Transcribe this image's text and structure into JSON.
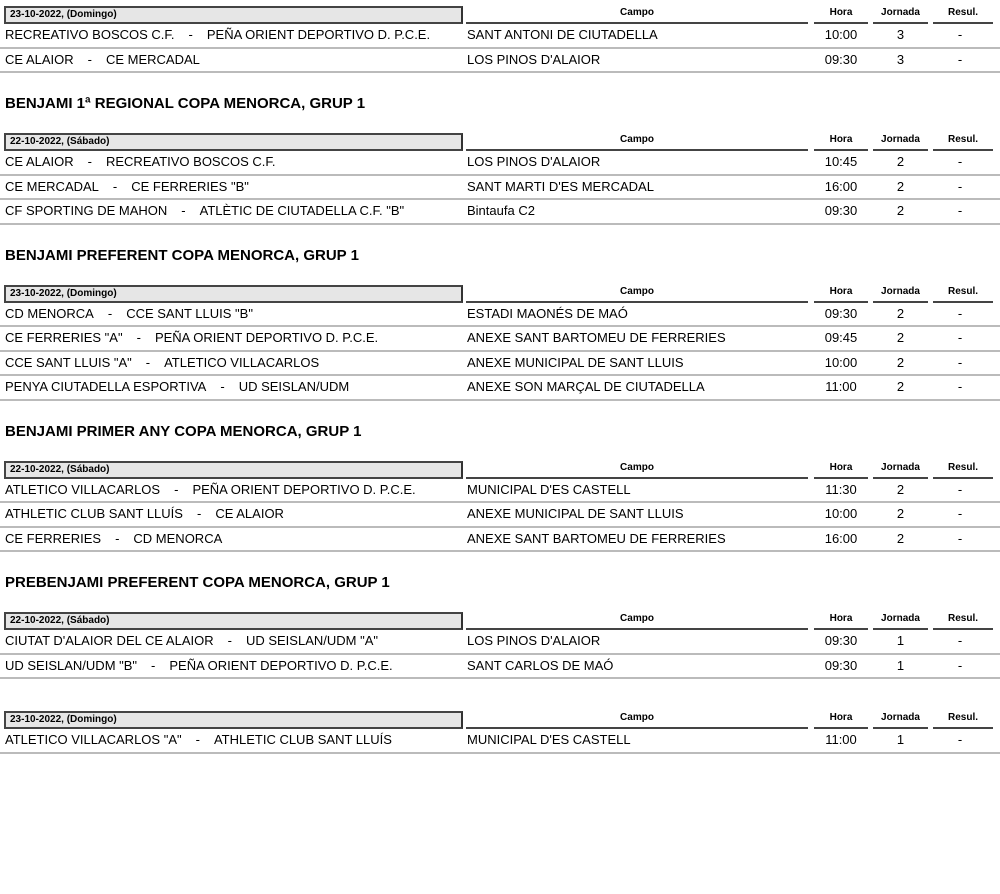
{
  "columns": {
    "campo": "Campo",
    "hora": "Hora",
    "jornada": "Jornada",
    "resul": "Resul."
  },
  "sections": [
    {
      "title": "",
      "blocks": [
        {
          "date": "23-10-2022,  (Domingo)",
          "matches": [
            {
              "home": "RECREATIVO BOSCOS C.F.",
              "away": "PEÑA ORIENT DEPORTIVO D. P.C.E.",
              "campo": "SANT ANTONI DE CIUTADELLA",
              "hora": "10:00",
              "jornada": "3",
              "resul": "-"
            },
            {
              "home": "CE ALAIOR",
              "away": "CE MERCADAL",
              "campo": "LOS PINOS D'ALAIOR",
              "hora": "09:30",
              "jornada": "3",
              "resul": "-"
            }
          ]
        }
      ]
    },
    {
      "title": "BENJAMI 1ª REGIONAL COPA MENORCA, GRUP 1",
      "blocks": [
        {
          "date": "22-10-2022,  (Sábado)",
          "matches": [
            {
              "home": "CE ALAIOR",
              "away": "RECREATIVO BOSCOS C.F.",
              "campo": "LOS PINOS D'ALAIOR",
              "hora": "10:45",
              "jornada": "2",
              "resul": "-"
            },
            {
              "home": "CE MERCADAL",
              "away": "CE FERRERIES \"B\"",
              "campo": "SANT MARTI D'ES MERCADAL",
              "hora": "16:00",
              "jornada": "2",
              "resul": "-"
            },
            {
              "home": "CF SPORTING DE MAHON",
              "away": "ATLÈTIC DE CIUTADELLA C.F. \"B\"",
              "campo": "Bintaufa C2",
              "hora": "09:30",
              "jornada": "2",
              "resul": "-"
            }
          ]
        }
      ]
    },
    {
      "title": "BENJAMI PREFERENT COPA MENORCA, GRUP 1",
      "blocks": [
        {
          "date": "23-10-2022,  (Domingo)",
          "matches": [
            {
              "home": "CD MENORCA",
              "away": "CCE SANT LLUIS \"B\"",
              "campo": "ESTADI MAONÉS DE MAÓ",
              "hora": "09:30",
              "jornada": "2",
              "resul": "-"
            },
            {
              "home": "CE FERRERIES \"A\"",
              "away": "PEÑA ORIENT DEPORTIVO D. P.C.E.",
              "campo": "ANEXE SANT BARTOMEU DE FERRERIES",
              "hora": "09:45",
              "jornada": "2",
              "resul": "-"
            },
            {
              "home": "CCE SANT LLUIS \"A\"",
              "away": "ATLETICO VILLACARLOS",
              "campo": "ANEXE MUNICIPAL DE SANT LLUIS",
              "hora": "10:00",
              "jornada": "2",
              "resul": "-"
            },
            {
              "home": "PENYA CIUTADELLA ESPORTIVA",
              "away": "UD SEISLAN/UDM",
              "campo": "ANEXE SON MARÇAL DE CIUTADELLA",
              "hora": "11:00",
              "jornada": "2",
              "resul": "-"
            }
          ]
        }
      ]
    },
    {
      "title": "BENJAMI PRIMER ANY COPA MENORCA, GRUP 1",
      "blocks": [
        {
          "date": "22-10-2022,  (Sábado)",
          "matches": [
            {
              "home": "ATLETICO VILLACARLOS",
              "away": "PEÑA ORIENT DEPORTIVO D. P.C.E.",
              "campo": "MUNICIPAL D'ES CASTELL",
              "hora": "11:30",
              "jornada": "2",
              "resul": "-"
            },
            {
              "home": "ATHLETIC CLUB SANT LLUÍS",
              "away": "CE ALAIOR",
              "campo": "ANEXE MUNICIPAL DE SANT LLUIS",
              "hora": "10:00",
              "jornada": "2",
              "resul": "-"
            },
            {
              "home": "CE FERRERIES",
              "away": "CD MENORCA",
              "campo": "ANEXE SANT BARTOMEU DE FERRERIES",
              "hora": "16:00",
              "jornada": "2",
              "resul": "-"
            }
          ]
        }
      ]
    },
    {
      "title": "PREBENJAMI PREFERENT COPA MENORCA, GRUP 1",
      "blocks": [
        {
          "date": "22-10-2022,  (Sábado)",
          "matches": [
            {
              "home": "CIUTAT D'ALAIOR DEL CE ALAIOR",
              "away": "UD SEISLAN/UDM \"A\"",
              "campo": "LOS PINOS D'ALAIOR",
              "hora": "09:30",
              "jornada": "1",
              "resul": "-"
            },
            {
              "home": "UD SEISLAN/UDM \"B\"",
              "away": "PEÑA ORIENT DEPORTIVO D. P.C.E.",
              "campo": "SANT CARLOS DE MAÓ",
              "hora": "09:30",
              "jornada": "1",
              "resul": "-"
            }
          ]
        },
        {
          "date": "23-10-2022,  (Domingo)",
          "matches": [
            {
              "home": "ATLETICO VILLACARLOS \"A\"",
              "away": "ATHLETIC CLUB SANT LLUÍS",
              "campo": "MUNICIPAL D'ES CASTELL",
              "hora": "11:00",
              "jornada": "1",
              "resul": "-"
            }
          ]
        }
      ]
    }
  ]
}
